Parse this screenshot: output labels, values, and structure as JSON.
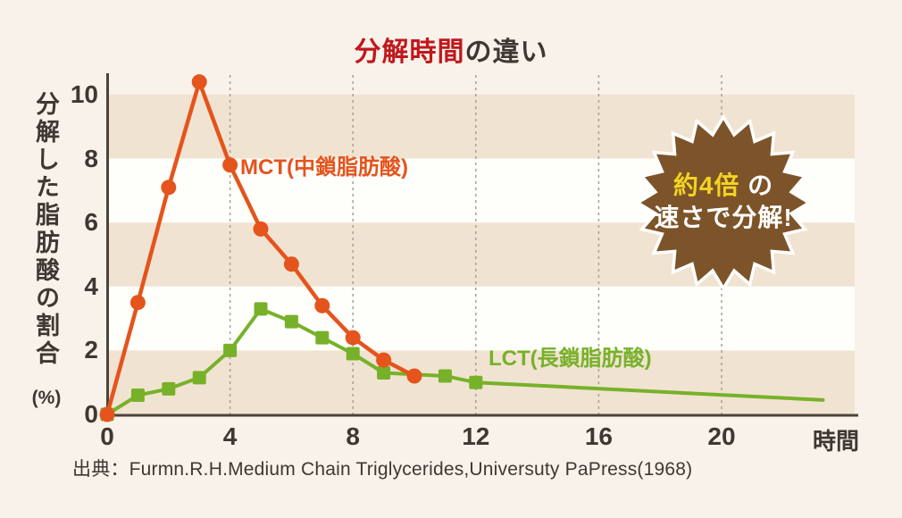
{
  "page": {
    "background": "#f8f2ea"
  },
  "title": {
    "highlight": "分解時間",
    "rest": "の違い",
    "highlight_color": "#c0181d",
    "text_color": "#3d3833"
  },
  "chart_data": {
    "type": "line",
    "title": "分解時間の違い",
    "ylabel": "分解した脂肪酸の割合",
    "ylabel_unit": "(%)",
    "x_unit": "時間",
    "x_ticks": [
      0,
      4,
      8,
      12,
      16,
      20
    ],
    "y_ticks": [
      0,
      2,
      4,
      6,
      8,
      10
    ],
    "xlim": [
      0,
      24.3
    ],
    "ylim": [
      0,
      10.6
    ],
    "grid": "vertical-dashed",
    "legend_position": "inline-labels",
    "series": [
      {
        "name": "LCT",
        "label": "LCT(長鎖脂肪酸)",
        "color": "#77b12a",
        "marker": "square",
        "x": [
          0,
          1,
          2,
          3,
          4,
          5,
          6,
          7,
          8,
          9,
          11,
          12
        ],
        "values": [
          0,
          0.6,
          0.8,
          1.15,
          2.0,
          3.3,
          2.9,
          2.4,
          1.9,
          1.3,
          1.2,
          1.0
        ],
        "tail_point": {
          "x": 23.3,
          "y": 0.45
        }
      },
      {
        "name": "MCT",
        "label": "MCT(中鎖脂肪酸)",
        "color": "#e4541c",
        "marker": "circle",
        "x": [
          0,
          1,
          2,
          3,
          4,
          5,
          6,
          7,
          8,
          9,
          10
        ],
        "values": [
          0,
          3.5,
          7.1,
          10.4,
          7.8,
          5.8,
          4.7,
          3.4,
          2.4,
          1.7,
          1.2
        ]
      }
    ],
    "stripes": {
      "beige_bands": [
        [
          0,
          2
        ],
        [
          4,
          6
        ],
        [
          8,
          10
        ]
      ],
      "white_bands": [
        [
          2,
          4
        ],
        [
          6,
          8
        ]
      ],
      "beige_color": "#f1e3d1",
      "white_color": "#fefefb"
    }
  },
  "badge": {
    "line1_highlight": "約4倍",
    "line1_rest": "の",
    "line2": "速さで分解!",
    "fill": "#7d5429",
    "border_color": "#ffffff",
    "highlight_color": "#f2d322",
    "text_color": "#ffffff"
  },
  "axis": {
    "color": "#4a443d",
    "grid_color": "#a3a19d",
    "tick_color": "#3d3833"
  },
  "source": {
    "text": "出典：Furmn.R.H.Medium Chain Triglycerides,Universuty PaPress(1968)"
  }
}
